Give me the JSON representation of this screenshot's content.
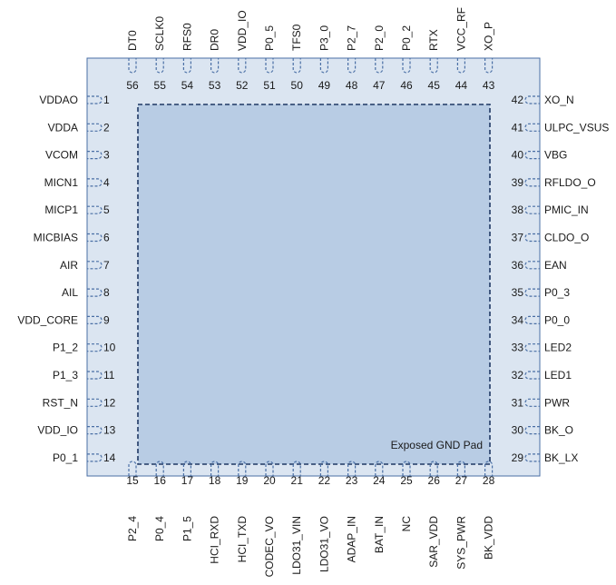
{
  "pins": {
    "left": [
      {
        "num": "1",
        "name": "VDDAO"
      },
      {
        "num": "2",
        "name": "VDDA"
      },
      {
        "num": "3",
        "name": "VCOM"
      },
      {
        "num": "4",
        "name": "MICN1"
      },
      {
        "num": "5",
        "name": "MICP1"
      },
      {
        "num": "6",
        "name": "MICBIAS"
      },
      {
        "num": "7",
        "name": "AIR"
      },
      {
        "num": "8",
        "name": "AIL"
      },
      {
        "num": "9",
        "name": "VDD_CORE"
      },
      {
        "num": "10",
        "name": "P1_2"
      },
      {
        "num": "11",
        "name": "P1_3"
      },
      {
        "num": "12",
        "name": "RST_N"
      },
      {
        "num": "13",
        "name": "VDD_IO"
      },
      {
        "num": "14",
        "name": "P0_1"
      }
    ],
    "bottom": [
      {
        "num": "15",
        "name": "P2_4"
      },
      {
        "num": "16",
        "name": "P0_4"
      },
      {
        "num": "17",
        "name": "P1_5"
      },
      {
        "num": "18",
        "name": "HCI_RXD"
      },
      {
        "num": "19",
        "name": "HCI_TXD"
      },
      {
        "num": "20",
        "name": "CODEC_VO"
      },
      {
        "num": "21",
        "name": "LDO31_VIN"
      },
      {
        "num": "22",
        "name": "LDO31_VO"
      },
      {
        "num": "23",
        "name": "ADAP_IN"
      },
      {
        "num": "24",
        "name": "BAT_IN"
      },
      {
        "num": "25",
        "name": "NC"
      },
      {
        "num": "26",
        "name": "SAR_VDD"
      },
      {
        "num": "27",
        "name": "SYS_PWR"
      },
      {
        "num": "28",
        "name": "BK_VDD"
      }
    ],
    "right": [
      {
        "num": "42",
        "name": "XO_N"
      },
      {
        "num": "41",
        "name": "ULPC_VSUS"
      },
      {
        "num": "40",
        "name": "VBG"
      },
      {
        "num": "39",
        "name": "RFLDO_O"
      },
      {
        "num": "38",
        "name": "PMIC_IN"
      },
      {
        "num": "37",
        "name": "CLDO_O"
      },
      {
        "num": "36",
        "name": "EAN"
      },
      {
        "num": "35",
        "name": "P0_3"
      },
      {
        "num": "34",
        "name": "P0_0"
      },
      {
        "num": "33",
        "name": "LED2"
      },
      {
        "num": "32",
        "name": "LED1"
      },
      {
        "num": "31",
        "name": "PWR"
      },
      {
        "num": "30",
        "name": "BK_O"
      },
      {
        "num": "29",
        "name": "BK_LX"
      }
    ],
    "top": [
      {
        "num": "56",
        "name": "DT0"
      },
      {
        "num": "55",
        "name": "SCLK0"
      },
      {
        "num": "54",
        "name": "RFS0"
      },
      {
        "num": "53",
        "name": "DR0"
      },
      {
        "num": "52",
        "name": "VDD_IO"
      },
      {
        "num": "51",
        "name": "P0_5"
      },
      {
        "num": "50",
        "name": "TFS0"
      },
      {
        "num": "49",
        "name": "P3_0"
      },
      {
        "num": "48",
        "name": "P2_7"
      },
      {
        "num": "47",
        "name": "P2_0"
      },
      {
        "num": "46",
        "name": "P0_2"
      },
      {
        "num": "45",
        "name": "RTX"
      },
      {
        "num": "44",
        "name": "VCC_RF"
      },
      {
        "num": "43",
        "name": "XO_P"
      }
    ]
  },
  "exposed_pad": {
    "label": "Exposed GND Pad"
  },
  "colors": {
    "package_fill": "#dbe5f1",
    "package_stroke": "#4a6fa5",
    "pad_fill": "#b8cce4",
    "pad_stroke": "#1f3864",
    "pin_stroke": "#4a6fa5"
  }
}
